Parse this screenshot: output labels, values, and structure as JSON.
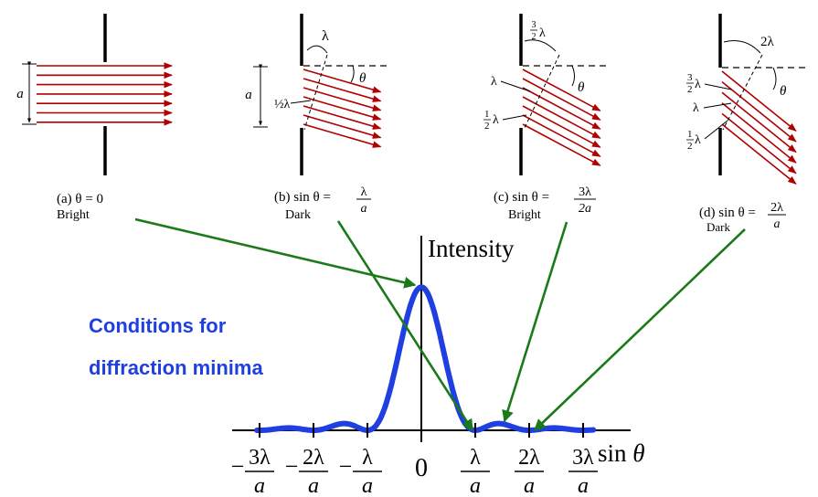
{
  "panels": [
    {
      "caption": "(a) θ = 0",
      "state": "Bright",
      "width_label": "a"
    },
    {
      "caption_prefix": "(b) sin θ =",
      "frac_num": "λ",
      "frac_den": "a",
      "state": "Dark",
      "width_label": "a",
      "half_label": "½λ",
      "path_label": "λ",
      "angle_label": "θ"
    },
    {
      "caption_prefix": "(c) sin θ =",
      "frac_num": "3λ",
      "frac_den": "2a",
      "state": "Bright",
      "labels": [
        "3/2λ",
        "λ",
        "½λ"
      ],
      "angle_label": "θ"
    },
    {
      "caption_prefix": "(d) sin θ =",
      "frac_num": "2λ",
      "frac_den": "a",
      "state": "Dark",
      "labels": [
        "2λ",
        "3/2λ",
        "λ",
        "½λ"
      ],
      "angle_label": "θ"
    }
  ],
  "heading_line1": "Conditions for",
  "heading_line2": "diffraction minima",
  "intensity_label": "Intensity",
  "axis_label": "sin θ",
  "ticks": [
    {
      "value": -3,
      "num": "3λ",
      "den": "a",
      "neg": true
    },
    {
      "value": -2,
      "num": "2λ",
      "den": "a",
      "neg": true
    },
    {
      "value": -1,
      "num": "λ",
      "den": "a",
      "neg": true
    },
    {
      "value": 0,
      "text": "0"
    },
    {
      "value": 1,
      "num": "λ",
      "den": "a"
    },
    {
      "value": 2,
      "num": "2λ",
      "den": "a"
    },
    {
      "value": 3,
      "num": "3λ",
      "den": "a"
    }
  ],
  "colors": {
    "curve": "#1f3fe0",
    "heading": "#1f3fe0",
    "arrows": "#1a7a1a",
    "rays": "#b00000"
  }
}
